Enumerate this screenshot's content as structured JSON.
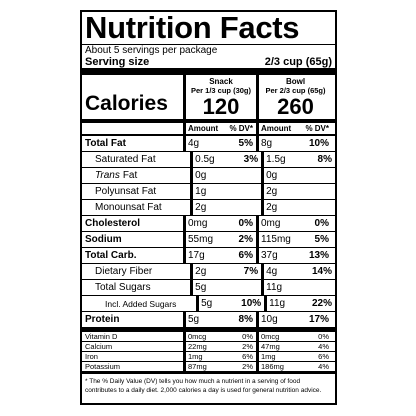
{
  "header": {
    "title": "Nutrition Facts",
    "servings": "About 5 servings per package",
    "serving_size_label": "Serving size",
    "serving_size": "2/3 cup (65g)"
  },
  "calories_label": "Calories",
  "columns": [
    {
      "name": "Snack",
      "per": "Per 1/3 cup (30g)",
      "calories": "120",
      "amount_label": "Amount",
      "dv_label": "% DV*"
    },
    {
      "name": "Bowl",
      "per": "Per 2/3 cup (65g)",
      "calories": "260",
      "amount_label": "Amount",
      "dv_label": "% DV*"
    }
  ],
  "nutrients": [
    {
      "name": "Total Fat",
      "values": [
        {
          "amount": "4g",
          "dv": "5%"
        },
        {
          "amount": "8g",
          "dv": "10%"
        }
      ]
    },
    {
      "name": "Saturated Fat",
      "values": [
        {
          "amount": "0.5g",
          "dv": "3%"
        },
        {
          "amount": "1.5g",
          "dv": "8%"
        }
      ]
    },
    {
      "name_italic": "Trans",
      "name": "Fat",
      "values": [
        {
          "amount": "0g"
        },
        {
          "amount": "0g"
        }
      ]
    },
    {
      "name": "Polyunsat Fat",
      "values": [
        {
          "amount": "1g"
        },
        {
          "amount": "2g"
        }
      ]
    },
    {
      "name": "Monounsat Fat",
      "values": [
        {
          "amount": "2g"
        },
        {
          "amount": "2g"
        }
      ]
    },
    {
      "name": "Cholesterol",
      "values": [
        {
          "amount": "0mg",
          "dv": "0%"
        },
        {
          "amount": "0mg",
          "dv": "0%"
        }
      ]
    },
    {
      "name": "Sodium",
      "values": [
        {
          "amount": "55mg",
          "dv": "2%"
        },
        {
          "amount": "115mg",
          "dv": "5%"
        }
      ]
    },
    {
      "name": "Total Carb.",
      "values": [
        {
          "amount": "17g",
          "dv": "6%"
        },
        {
          "amount": "37g",
          "dv": "13%"
        }
      ]
    },
    {
      "name": "Dietary Fiber",
      "values": [
        {
          "amount": "2g",
          "dv": "7%"
        },
        {
          "amount": "4g",
          "dv": "14%"
        }
      ]
    },
    {
      "name": "Total Sugars",
      "values": [
        {
          "amount": "5g"
        },
        {
          "amount": "11g"
        }
      ]
    },
    {
      "name": "Incl. Added Sugars",
      "values": [
        {
          "amount": "5g",
          "dv": "10%"
        },
        {
          "amount": "11g",
          "dv": "22%"
        }
      ]
    },
    {
      "name": "Protein",
      "values": [
        {
          "amount": "5g",
          "dv": "8%"
        },
        {
          "amount": "10g",
          "dv": "17%"
        }
      ]
    }
  ],
  "vitamins": [
    {
      "name": "Vitamin D",
      "values": [
        {
          "amount": "0mcg",
          "dv": "0%"
        },
        {
          "amount": "0mcg",
          "dv": "0%"
        }
      ]
    },
    {
      "name": "Calcium",
      "values": [
        {
          "amount": "22mg",
          "dv": "2%"
        },
        {
          "amount": "47mg",
          "dv": "4%"
        }
      ]
    },
    {
      "name": "Iron",
      "values": [
        {
          "amount": "1mg",
          "dv": "6%"
        },
        {
          "amount": "1mg",
          "dv": "6%"
        }
      ]
    },
    {
      "name": "Potassium",
      "values": [
        {
          "amount": "87mg",
          "dv": "2%"
        },
        {
          "amount": "186mg",
          "dv": "4%"
        }
      ]
    }
  ],
  "footnote": "* The % Daily Value (DV) tells you how much a nutrient in a serving of food contributes to a daily diet. 2,000 calories a day is used for general nutrition advice."
}
